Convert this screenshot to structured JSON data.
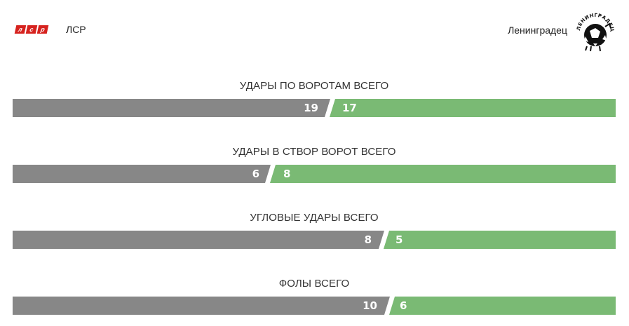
{
  "home": {
    "name": "ЛСР",
    "logo_letters": [
      "л",
      "с",
      "р"
    ]
  },
  "away": {
    "name": "Ленинградец",
    "logo_text": "ЛЕНИНГРАДЕЦ"
  },
  "colors": {
    "home": "#878787",
    "away": "#7aba74",
    "logo_red": "#d6221e"
  },
  "stats": [
    {
      "title": "УДАРЫ ПО ВОРОТАМ ВСЕГО",
      "home": "19",
      "away": "17"
    },
    {
      "title": "УДАРЫ В СТВОР ВОРОТ ВСЕГО",
      "home": "6",
      "away": "8"
    },
    {
      "title": "УГЛОВЫЕ УДАРЫ ВСЕГО",
      "home": "8",
      "away": "5"
    },
    {
      "title": "ФОЛЫ ВСЕГО",
      "home": "10",
      "away": "6"
    }
  ]
}
